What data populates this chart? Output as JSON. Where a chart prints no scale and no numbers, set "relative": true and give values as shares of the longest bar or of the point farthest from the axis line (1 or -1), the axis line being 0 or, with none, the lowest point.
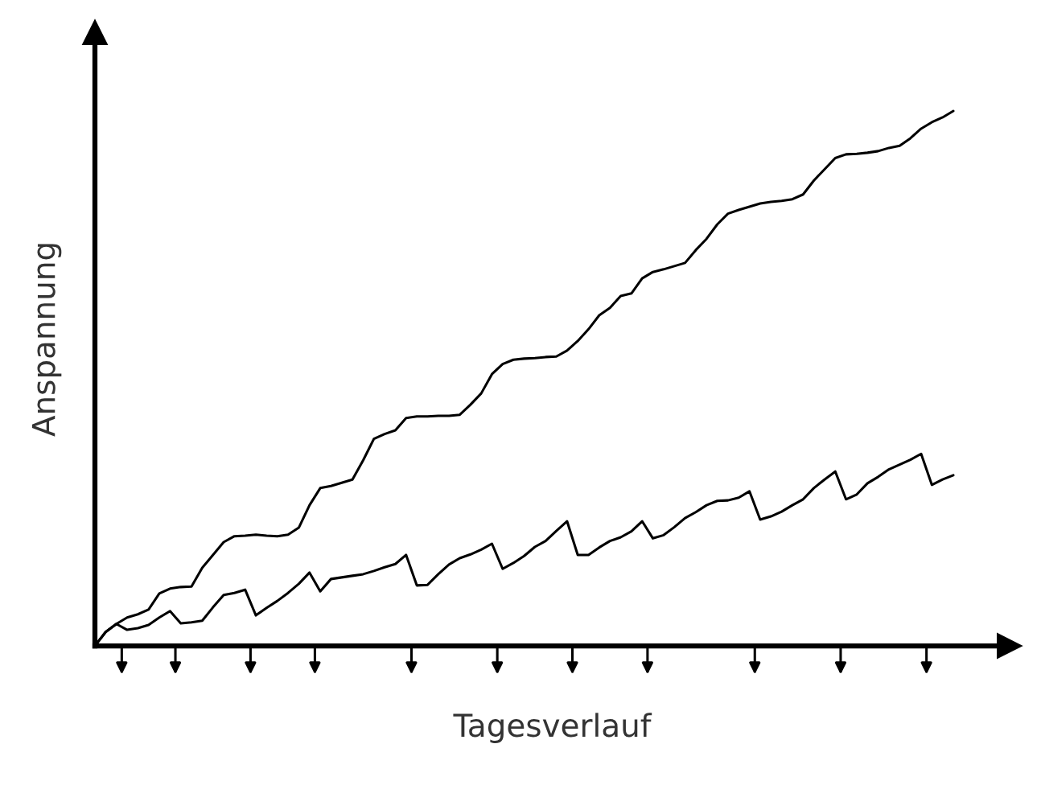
{
  "chart_data": {
    "type": "line",
    "relative": true,
    "xlabel": "Tagesverlauf",
    "ylabel": "Anspannung",
    "legend": false,
    "tick_labels": false,
    "marker": "none",
    "line_style": "solid",
    "categories": [
      null,
      null,
      null,
      null,
      null,
      null,
      null,
      null,
      null,
      null,
      null,
      null,
      null,
      null,
      null,
      null,
      null,
      null,
      null,
      null,
      null,
      null,
      null,
      null,
      null,
      null,
      null,
      null,
      null,
      null,
      null,
      null,
      null,
      null,
      null,
      null,
      null,
      null,
      null,
      null,
      null,
      null,
      null,
      null,
      null,
      null,
      null,
      null,
      null,
      null,
      null,
      null,
      null,
      null,
      null,
      null,
      null,
      null,
      null,
      null,
      null,
      null,
      null,
      null,
      null,
      null,
      null,
      null,
      null,
      null,
      null,
      null,
      null,
      null,
      null,
      null,
      null,
      null,
      null,
      null,
      null
    ],
    "series": [
      {
        "color": "#000000",
        "values": [
          0,
          0.026,
          0.041,
          0.053,
          0.059,
          0.068,
          0.098,
          0.107,
          0.11,
          0.111,
          0.146,
          0.17,
          0.194,
          0.205,
          0.206,
          0.208,
          0.206,
          0.205,
          0.208,
          0.221,
          0.263,
          0.295,
          0.299,
          0.305,
          0.311,
          0.347,
          0.387,
          0.396,
          0.403,
          0.426,
          0.429,
          0.429,
          0.43,
          0.43,
          0.432,
          0.451,
          0.472,
          0.508,
          0.527,
          0.535,
          0.537,
          0.538,
          0.54,
          0.541,
          0.552,
          0.57,
          0.592,
          0.618,
          0.632,
          0.654,
          0.659,
          0.687,
          0.699,
          0.704,
          0.71,
          0.716,
          0.74,
          0.761,
          0.788,
          0.808,
          0.815,
          0.821,
          0.827,
          0.83,
          0.832,
          0.835,
          0.844,
          0.87,
          0.891,
          0.912,
          0.919,
          0.92,
          0.922,
          0.925,
          0.931,
          0.935,
          0.949,
          0.967,
          0.979,
          0.988,
          1
        ]
      },
      {
        "color": "#000000",
        "values": [
          0,
          0.026,
          0.041,
          0.03,
          0.033,
          0.039,
          0.053,
          0.065,
          0.042,
          0.044,
          0.047,
          0.072,
          0.095,
          0.099,
          0.105,
          0.057,
          0.071,
          0.084,
          0.099,
          0.116,
          0.137,
          0.102,
          0.125,
          0.128,
          0.131,
          0.134,
          0.14,
          0.147,
          0.153,
          0.17,
          0.113,
          0.114,
          0.134,
          0.152,
          0.164,
          0.171,
          0.18,
          0.191,
          0.144,
          0.155,
          0.168,
          0.185,
          0.196,
          0.215,
          0.233,
          0.17,
          0.17,
          0.184,
          0.196,
          0.203,
          0.214,
          0.233,
          0.201,
          0.207,
          0.222,
          0.239,
          0.25,
          0.263,
          0.271,
          0.272,
          0.277,
          0.289,
          0.236,
          0.242,
          0.251,
          0.263,
          0.274,
          0.295,
          0.311,
          0.326,
          0.274,
          0.283,
          0.304,
          0.316,
          0.33,
          0.339,
          0.348,
          0.359,
          0.301,
          0.311,
          0.319
        ]
      }
    ]
  }
}
